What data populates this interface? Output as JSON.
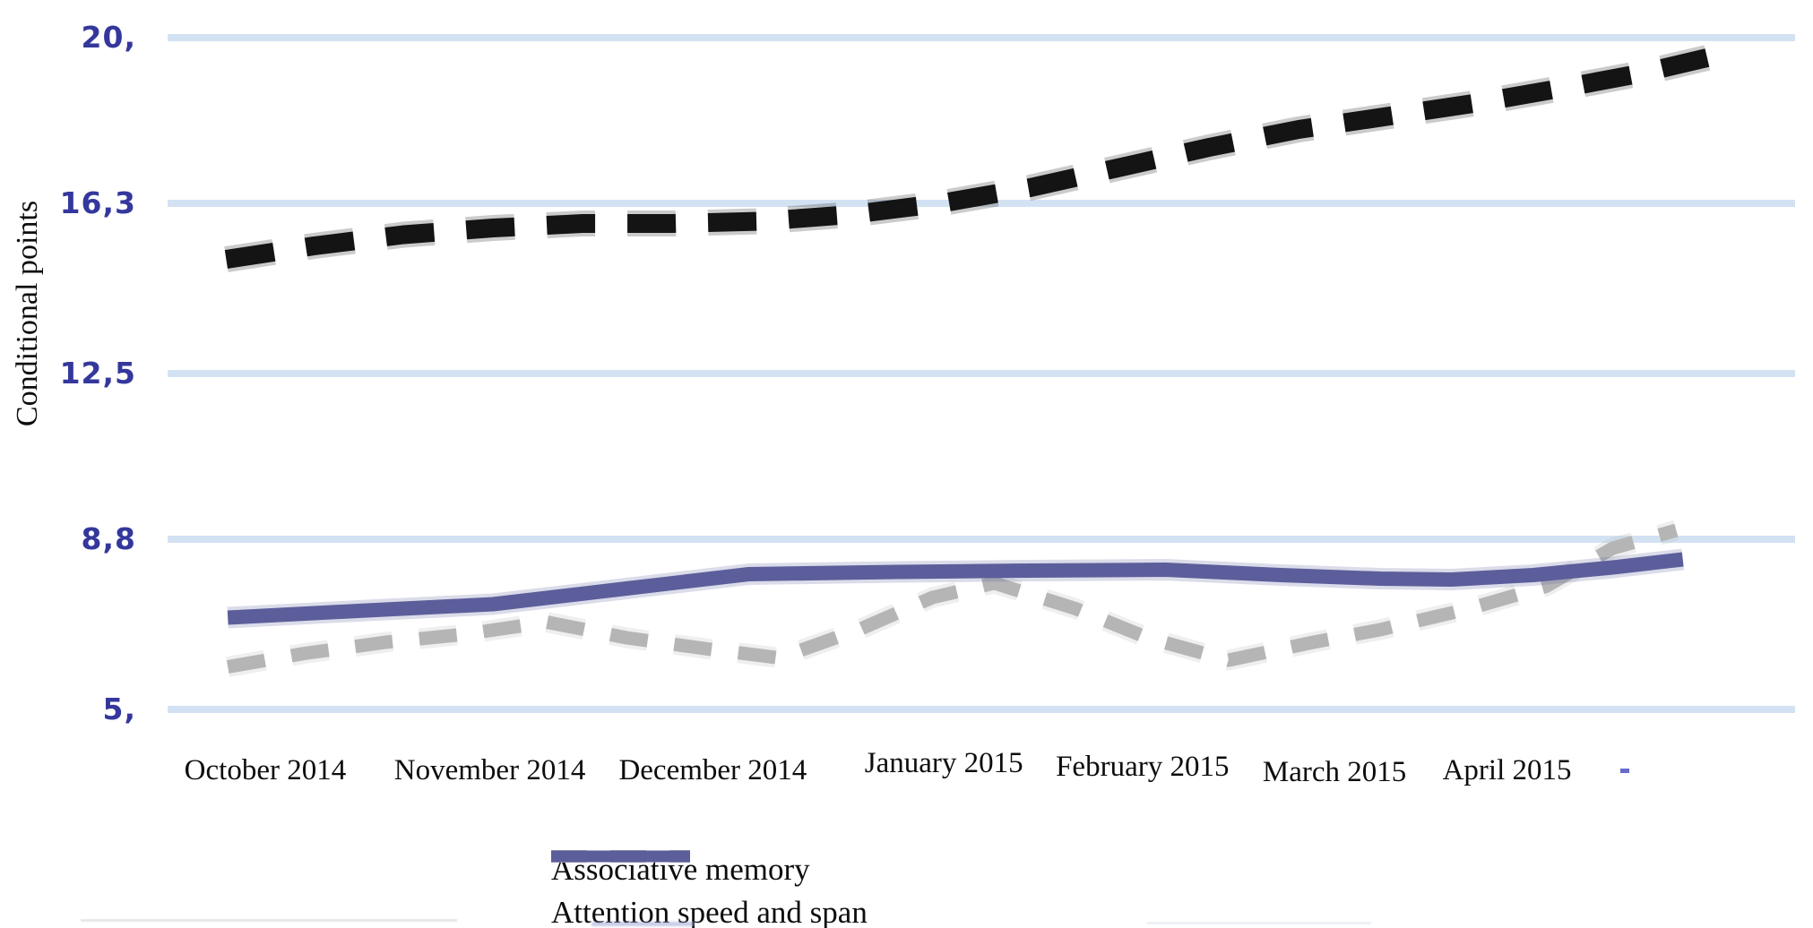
{
  "chart_data": {
    "type": "line",
    "title": "",
    "ylabel": "Conditional points",
    "xlabel": "",
    "grid": "horizontal-only",
    "legend_position": "bottom-center",
    "ylim": [
      5,
      20
    ],
    "y_ticks": [
      {
        "label": "20,",
        "value": 20
      },
      {
        "label": "16,3",
        "value": 16.3
      },
      {
        "label": "12,5",
        "value": 12.5
      },
      {
        "label": "8,8",
        "value": 8.8
      },
      {
        "label": "5,",
        "value": 5
      }
    ],
    "x_categories": [
      {
        "label": "October 2014",
        "t": 0.06,
        "dy": 0
      },
      {
        "label": "November 2014",
        "t": 0.198,
        "dy": 0
      },
      {
        "label": "December 2014",
        "t": 0.335,
        "dy": 0
      },
      {
        "label": "January 2015",
        "t": 0.477,
        "dy": -8
      },
      {
        "label": "February 2015",
        "t": 0.599,
        "dy": -4
      },
      {
        "label": "March 2015",
        "t": 0.717,
        "dy": 2
      },
      {
        "label": "April 2015",
        "t": 0.823,
        "dy": 0
      }
    ],
    "series": [
      {
        "id": "upper_dashed",
        "legend_label": null,
        "color": "#141414",
        "style": "dashed",
        "stroke_width": 21,
        "dash": [
          54,
          36
        ],
        "points": [
          [
            0.036,
            15.05
          ],
          [
            0.09,
            15.35
          ],
          [
            0.145,
            15.6
          ],
          [
            0.2,
            15.75
          ],
          [
            0.255,
            15.85
          ],
          [
            0.31,
            15.85
          ],
          [
            0.365,
            15.9
          ],
          [
            0.42,
            16.05
          ],
          [
            0.475,
            16.3
          ],
          [
            0.53,
            16.65
          ],
          [
            0.585,
            17.1
          ],
          [
            0.64,
            17.55
          ],
          [
            0.695,
            17.95
          ],
          [
            0.751,
            18.25
          ],
          [
            0.806,
            18.55
          ],
          [
            0.861,
            18.9
          ],
          [
            0.905,
            19.2
          ],
          [
            0.946,
            19.55
          ]
        ]
      },
      {
        "id": "associative_memory",
        "legend_label": "Associative memory",
        "color": "#b5b5b5",
        "style": "dashed",
        "stroke_width": 15,
        "dash": [
          42,
          30
        ],
        "points": [
          [
            0.037,
            5.95
          ],
          [
            0.084,
            6.25
          ],
          [
            0.134,
            6.5
          ],
          [
            0.183,
            6.68
          ],
          [
            0.233,
            6.95
          ],
          [
            0.282,
            6.6
          ],
          [
            0.332,
            6.35
          ],
          [
            0.376,
            6.15
          ],
          [
            0.426,
            6.8
          ],
          [
            0.47,
            7.5
          ],
          [
            0.508,
            7.82
          ],
          [
            0.558,
            7.25
          ],
          [
            0.602,
            6.6
          ],
          [
            0.652,
            6.1
          ],
          [
            0.704,
            6.5
          ],
          [
            0.745,
            6.78
          ],
          [
            0.8,
            7.25
          ],
          [
            0.847,
            7.75
          ],
          [
            0.888,
            8.6
          ],
          [
            0.927,
            9.0
          ]
        ]
      },
      {
        "id": "attention_speed_span",
        "legend_label": "Attention speed and span",
        "color": "#5c5e9b",
        "style": "solid",
        "stroke_width": 16,
        "dash": null,
        "points": [
          [
            0.037,
            7.05
          ],
          [
            0.117,
            7.2
          ],
          [
            0.2,
            7.35
          ],
          [
            0.282,
            7.7
          ],
          [
            0.357,
            8.02
          ],
          [
            0.448,
            8.07
          ],
          [
            0.53,
            8.1
          ],
          [
            0.613,
            8.12
          ],
          [
            0.684,
            8.0
          ],
          [
            0.745,
            7.92
          ],
          [
            0.789,
            7.9
          ],
          [
            0.839,
            8.0
          ],
          [
            0.888,
            8.17
          ],
          [
            0.931,
            8.35
          ]
        ]
      }
    ],
    "legend": [
      {
        "label": "Associative memory",
        "series_id": "associative_memory"
      },
      {
        "label": "Attention speed and span",
        "series_id": "attention_speed_span"
      }
    ]
  },
  "colors": {
    "gridline": "#d3e2f3",
    "tick_label": "#34379b",
    "text": "#0d0d0d",
    "background": "#ffffff"
  }
}
